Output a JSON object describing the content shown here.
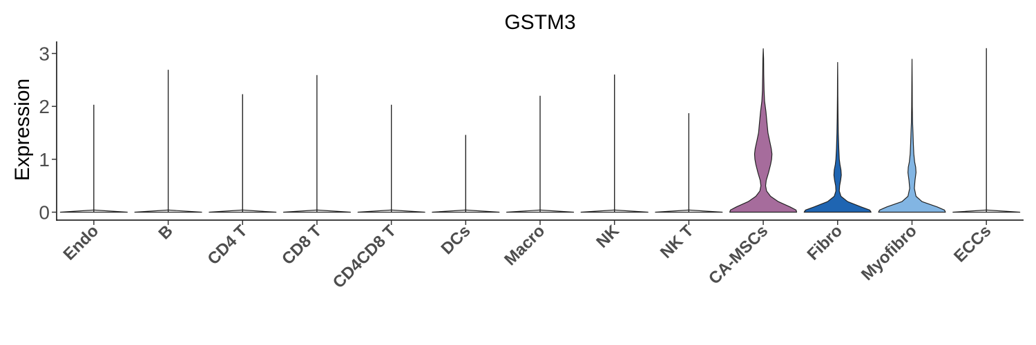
{
  "chart_data": {
    "type": "violin",
    "title": "GSTM3",
    "xlabel": "",
    "ylabel": "Expression",
    "ylim": [
      -0.15,
      3.25
    ],
    "yticks": [
      0,
      1,
      2,
      3
    ],
    "legend": "none",
    "grid": false,
    "categories": [
      "Endo",
      "B",
      "CD4 T",
      "CD8 T",
      "CD4CD8 T",
      "DCs",
      "Macro",
      "NK",
      "NK T",
      "CA-MSCs",
      "Fibro",
      "Myofibro",
      "ECCs"
    ],
    "series": [
      {
        "category": "Endo",
        "max": 2.03,
        "color": "#ffffff",
        "density": [
          [
            0,
            1
          ],
          [
            0.04,
            0
          ]
        ]
      },
      {
        "category": "B",
        "max": 2.69,
        "color": "#ffffff",
        "density": [
          [
            0,
            1
          ],
          [
            0.04,
            0
          ]
        ]
      },
      {
        "category": "CD4 T",
        "max": 2.23,
        "color": "#ffffff",
        "density": [
          [
            0,
            1
          ],
          [
            0.04,
            0
          ]
        ]
      },
      {
        "category": "CD8 T",
        "max": 2.59,
        "color": "#ffffff",
        "density": [
          [
            0,
            1
          ],
          [
            0.04,
            0
          ]
        ]
      },
      {
        "category": "CD4CD8 T",
        "max": 2.03,
        "color": "#ffffff",
        "density": [
          [
            0,
            1
          ],
          [
            0.04,
            0
          ]
        ]
      },
      {
        "category": "DCs",
        "max": 1.46,
        "color": "#ffffff",
        "density": [
          [
            0,
            1
          ],
          [
            0.04,
            0
          ]
        ]
      },
      {
        "category": "Macro",
        "max": 2.2,
        "color": "#ffffff",
        "density": [
          [
            0,
            1
          ],
          [
            0.04,
            0
          ]
        ]
      },
      {
        "category": "NK",
        "max": 2.6,
        "color": "#ffffff",
        "density": [
          [
            0,
            1
          ],
          [
            0.04,
            0
          ]
        ]
      },
      {
        "category": "NK T",
        "max": 1.87,
        "color": "#ffffff",
        "density": [
          [
            0,
            1
          ],
          [
            0.04,
            0
          ]
        ]
      },
      {
        "category": "CA-MSCs",
        "max": 3.09,
        "color": "#a66c9c",
        "density": [
          [
            0,
            1
          ],
          [
            0.04,
            0.98
          ],
          [
            0.1,
            0.8
          ],
          [
            0.2,
            0.45
          ],
          [
            0.3,
            0.22
          ],
          [
            0.4,
            0.1
          ],
          [
            0.5,
            0.07
          ],
          [
            0.6,
            0.09
          ],
          [
            0.75,
            0.16
          ],
          [
            0.9,
            0.22
          ],
          [
            1.0,
            0.25
          ],
          [
            1.1,
            0.26
          ],
          [
            1.2,
            0.24
          ],
          [
            1.35,
            0.19
          ],
          [
            1.5,
            0.14
          ],
          [
            1.7,
            0.11
          ],
          [
            1.9,
            0.08
          ],
          [
            2.1,
            0.04
          ],
          [
            2.3,
            0.025
          ],
          [
            2.6,
            0.015
          ],
          [
            2.9,
            0.01
          ],
          [
            3.09,
            0
          ]
        ]
      },
      {
        "category": "Fibro",
        "max": 2.83,
        "color": "#1f65b2",
        "density": [
          [
            0,
            1
          ],
          [
            0.04,
            0.96
          ],
          [
            0.1,
            0.7
          ],
          [
            0.2,
            0.3
          ],
          [
            0.3,
            0.1
          ],
          [
            0.4,
            0.05
          ],
          [
            0.5,
            0.06
          ],
          [
            0.6,
            0.09
          ],
          [
            0.7,
            0.11
          ],
          [
            0.8,
            0.1
          ],
          [
            0.9,
            0.07
          ],
          [
            1.0,
            0.05
          ],
          [
            1.2,
            0.035
          ],
          [
            1.5,
            0.02
          ],
          [
            1.8,
            0.012
          ],
          [
            2.2,
            0.006
          ],
          [
            2.5,
            0.004
          ],
          [
            2.83,
            0
          ]
        ]
      },
      {
        "category": "Myofibro",
        "max": 2.89,
        "color": "#82b5e3",
        "density": [
          [
            0,
            1
          ],
          [
            0.04,
            0.97
          ],
          [
            0.1,
            0.75
          ],
          [
            0.2,
            0.3
          ],
          [
            0.3,
            0.12
          ],
          [
            0.45,
            0.07
          ],
          [
            0.6,
            0.09
          ],
          [
            0.75,
            0.12
          ],
          [
            0.85,
            0.11
          ],
          [
            0.95,
            0.08
          ],
          [
            1.1,
            0.055
          ],
          [
            1.3,
            0.04
          ],
          [
            1.5,
            0.03
          ],
          [
            1.7,
            0.018
          ],
          [
            2.0,
            0.01
          ],
          [
            2.4,
            0.006
          ],
          [
            2.89,
            0
          ]
        ]
      },
      {
        "category": "ECCs",
        "max": 3.1,
        "color": "#ffffff",
        "density": [
          [
            0,
            1
          ],
          [
            0.04,
            0
          ]
        ]
      }
    ]
  }
}
